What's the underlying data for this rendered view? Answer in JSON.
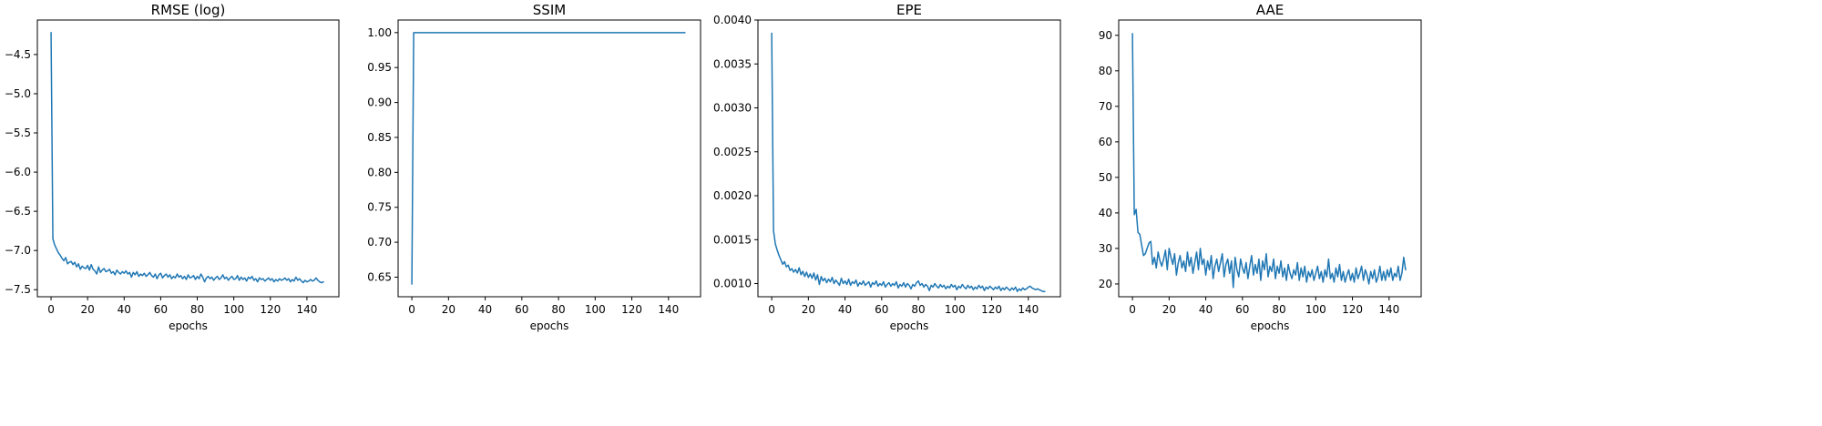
{
  "colors": {
    "series": "#1f77b4"
  },
  "chart_data": [
    {
      "type": "line",
      "title": "RMSE (log)",
      "xlabel": "epochs",
      "ylabel": "",
      "xlim": [
        -7.5,
        157.5
      ],
      "ylim": [
        -7.59,
        -4.06
      ],
      "xticks": [
        0,
        20,
        40,
        60,
        80,
        100,
        120,
        140
      ],
      "xtick_labels": [
        "0",
        "20",
        "40",
        "60",
        "80",
        "100",
        "120",
        "140"
      ],
      "yticks": [
        -7.5,
        -7.0,
        -6.5,
        -6.0,
        -5.5,
        -5.0,
        -4.5
      ],
      "ytick_labels": [
        "−7.5",
        "−7.0",
        "−6.5",
        "−6.0",
        "−5.5",
        "−5.0",
        "−4.5"
      ],
      "grid": false,
      "legend": null,
      "series": [
        {
          "x": [
            0,
            1,
            2,
            3,
            4,
            5,
            6,
            7,
            8,
            9,
            10,
            11,
            12,
            13,
            14,
            15,
            16,
            17,
            18,
            19,
            20,
            21,
            22,
            23,
            24,
            25,
            26,
            27,
            28,
            29,
            30,
            31,
            32,
            33,
            34,
            35,
            36,
            37,
            38,
            39,
            40,
            41,
            42,
            43,
            44,
            45,
            46,
            47,
            48,
            49,
            50,
            51,
            52,
            53,
            54,
            55,
            56,
            57,
            58,
            59,
            60,
            61,
            62,
            63,
            64,
            65,
            66,
            67,
            68,
            69,
            70,
            71,
            72,
            73,
            74,
            75,
            76,
            77,
            78,
            79,
            80,
            81,
            82,
            83,
            84,
            85,
            86,
            87,
            88,
            89,
            90,
            91,
            92,
            93,
            94,
            95,
            96,
            97,
            98,
            99,
            100,
            101,
            102,
            103,
            104,
            105,
            106,
            107,
            108,
            109,
            110,
            111,
            112,
            113,
            114,
            115,
            116,
            117,
            118,
            119,
            120,
            121,
            122,
            123,
            124,
            125,
            126,
            127,
            128,
            129,
            130,
            131,
            132,
            133,
            134,
            135,
            136,
            137,
            138,
            139,
            140,
            141,
            142,
            143,
            144,
            145,
            146,
            147,
            148,
            149
          ],
          "values": [
            -4.22,
            -6.85,
            -6.93,
            -6.98,
            -7.03,
            -7.06,
            -7.1,
            -7.13,
            -7.09,
            -7.17,
            -7.15,
            -7.14,
            -7.18,
            -7.15,
            -7.21,
            -7.17,
            -7.24,
            -7.2,
            -7.22,
            -7.23,
            -7.19,
            -7.25,
            -7.18,
            -7.24,
            -7.26,
            -7.3,
            -7.21,
            -7.28,
            -7.25,
            -7.23,
            -7.27,
            -7.26,
            -7.24,
            -7.29,
            -7.27,
            -7.31,
            -7.25,
            -7.28,
            -7.3,
            -7.27,
            -7.29,
            -7.26,
            -7.3,
            -7.28,
            -7.34,
            -7.28,
            -7.31,
            -7.27,
            -7.33,
            -7.3,
            -7.32,
            -7.29,
            -7.33,
            -7.31,
            -7.28,
            -7.32,
            -7.34,
            -7.3,
            -7.36,
            -7.31,
            -7.29,
            -7.35,
            -7.32,
            -7.3,
            -7.34,
            -7.31,
            -7.36,
            -7.33,
            -7.35,
            -7.3,
            -7.34,
            -7.32,
            -7.36,
            -7.33,
            -7.37,
            -7.31,
            -7.35,
            -7.34,
            -7.32,
            -7.37,
            -7.33,
            -7.36,
            -7.3,
            -7.34,
            -7.4,
            -7.35,
            -7.33,
            -7.36,
            -7.34,
            -7.38,
            -7.35,
            -7.33,
            -7.37,
            -7.35,
            -7.31,
            -7.36,
            -7.34,
            -7.38,
            -7.35,
            -7.33,
            -7.37,
            -7.36,
            -7.32,
            -7.38,
            -7.34,
            -7.37,
            -7.35,
            -7.39,
            -7.34,
            -7.36,
            -7.33,
            -7.38,
            -7.36,
            -7.4,
            -7.35,
            -7.37,
            -7.36,
            -7.39,
            -7.37,
            -7.35,
            -7.38,
            -7.36,
            -7.4,
            -7.37,
            -7.39,
            -7.36,
            -7.38,
            -7.37,
            -7.35,
            -7.38,
            -7.36,
            -7.4,
            -7.37,
            -7.39,
            -7.34,
            -7.38,
            -7.36,
            -7.39,
            -7.41,
            -7.38,
            -7.4,
            -7.39,
            -7.37,
            -7.39,
            -7.38,
            -7.35,
            -7.38,
            -7.4,
            -7.41,
            -7.4
          ]
        }
      ]
    },
    {
      "type": "line",
      "title": "SSIM",
      "xlabel": "epochs",
      "ylabel": "",
      "xlim": [
        -7.5,
        157.5
      ],
      "ylim": [
        0.622,
        1.018
      ],
      "xticks": [
        0,
        20,
        40,
        60,
        80,
        100,
        120,
        140
      ],
      "xtick_labels": [
        "0",
        "20",
        "40",
        "60",
        "80",
        "100",
        "120",
        "140"
      ],
      "yticks": [
        0.65,
        0.7,
        0.75,
        0.8,
        0.85,
        0.9,
        0.95,
        1.0
      ],
      "ytick_labels": [
        "0.65",
        "0.70",
        "0.75",
        "0.80",
        "0.85",
        "0.90",
        "0.95",
        "1.00"
      ],
      "grid": false,
      "legend": null,
      "series": [
        {
          "x": [
            0,
            1,
            149
          ],
          "values": [
            0.64,
            1.0,
            1.0
          ]
        }
      ]
    },
    {
      "type": "line",
      "title": "EPE",
      "xlabel": "epochs",
      "ylabel": "",
      "xlim": [
        -7.5,
        157.5
      ],
      "ylim": [
        0.00085,
        0.004
      ],
      "xticks": [
        0,
        20,
        40,
        60,
        80,
        100,
        120,
        140
      ],
      "xtick_labels": [
        "0",
        "20",
        "40",
        "60",
        "80",
        "100",
        "120",
        "140"
      ],
      "yticks": [
        0.001,
        0.0015,
        0.002,
        0.0025,
        0.003,
        0.0035,
        0.004
      ],
      "ytick_labels": [
        "0.0010",
        "0.0015",
        "0.0020",
        "0.0025",
        "0.0030",
        "0.0035",
        "0.0040"
      ],
      "grid": false,
      "legend": null,
      "series": [
        {
          "x": [
            0,
            1,
            2,
            3,
            4,
            5,
            6,
            7,
            8,
            9,
            10,
            11,
            12,
            13,
            14,
            15,
            16,
            17,
            18,
            19,
            20,
            21,
            22,
            23,
            24,
            25,
            26,
            27,
            28,
            29,
            30,
            31,
            32,
            33,
            34,
            35,
            36,
            37,
            38,
            39,
            40,
            41,
            42,
            43,
            44,
            45,
            46,
            47,
            48,
            49,
            50,
            51,
            52,
            53,
            54,
            55,
            56,
            57,
            58,
            59,
            60,
            61,
            62,
            63,
            64,
            65,
            66,
            67,
            68,
            69,
            70,
            71,
            72,
            73,
            74,
            75,
            76,
            77,
            78,
            79,
            80,
            81,
            82,
            83,
            84,
            85,
            86,
            87,
            88,
            89,
            90,
            91,
            92,
            93,
            94,
            95,
            96,
            97,
            98,
            99,
            100,
            101,
            102,
            103,
            104,
            105,
            106,
            107,
            108,
            109,
            110,
            111,
            112,
            113,
            114,
            115,
            116,
            117,
            118,
            119,
            120,
            121,
            122,
            123,
            124,
            125,
            126,
            127,
            128,
            129,
            130,
            131,
            132,
            133,
            134,
            135,
            136,
            137,
            138,
            139,
            140,
            141,
            142,
            143,
            144,
            145,
            146,
            147,
            148,
            149
          ],
          "values": [
            0.00385,
            0.0016,
            0.00145,
            0.00138,
            0.00132,
            0.00127,
            0.00122,
            0.00125,
            0.00119,
            0.00121,
            0.00115,
            0.00117,
            0.00113,
            0.00116,
            0.00112,
            0.00118,
            0.0011,
            0.00114,
            0.00108,
            0.00113,
            0.00107,
            0.00111,
            0.00106,
            0.00112,
            0.00104,
            0.0011,
            0.00099,
            0.00108,
            0.00103,
            0.00106,
            0.00101,
            0.00105,
            0.00102,
            0.00107,
            0.001,
            0.00104,
            0.00101,
            0.00098,
            0.00106,
            0.001,
            0.00103,
            0.00099,
            0.00105,
            0.00098,
            0.00102,
            0.001,
            0.00104,
            0.00097,
            0.00101,
            0.00099,
            0.00103,
            0.00098,
            0.001,
            0.00102,
            0.00096,
            0.00101,
            0.00099,
            0.00103,
            0.00097,
            0.001,
            0.00098,
            0.00102,
            0.00096,
            0.00099,
            0.00101,
            0.00097,
            0.001,
            0.00098,
            0.00102,
            0.00095,
            0.00099,
            0.00097,
            0.00101,
            0.00096,
            0.001,
            0.00098,
            0.00094,
            0.00099,
            0.00097,
            0.00101,
            0.00103,
            0.00098,
            0.001,
            0.00096,
            0.00099,
            0.00097,
            0.00092,
            0.00098,
            0.00096,
            0.001,
            0.00097,
            0.00095,
            0.00099,
            0.00096,
            0.00098,
            0.00094,
            0.00097,
            0.00095,
            0.00099,
            0.00096,
            0.00098,
            0.00093,
            0.00097,
            0.00095,
            0.00099,
            0.00096,
            0.00094,
            0.00098,
            0.00095,
            0.00097,
            0.00093,
            0.00096,
            0.00094,
            0.00098,
            0.00095,
            0.00097,
            0.00092,
            0.00096,
            0.00094,
            0.00097,
            0.00095,
            0.00093,
            0.00096,
            0.00094,
            0.00097,
            0.00092,
            0.00095,
            0.00093,
            0.00096,
            0.00094,
            0.00092,
            0.00095,
            0.00093,
            0.00096,
            0.00091,
            0.00094,
            0.00092,
            0.00095,
            0.00093,
            0.00094,
            0.00096,
            0.00097,
            0.00095,
            0.00094,
            0.00093,
            0.00094,
            0.00093,
            0.00092,
            0.00091,
            0.00091
          ]
        }
      ]
    },
    {
      "type": "line",
      "title": "AAE",
      "xlabel": "epochs",
      "ylabel": "",
      "xlim": [
        -7.5,
        157.5
      ],
      "ylim": [
        16.4,
        94.3
      ],
      "xticks": [
        0,
        20,
        40,
        60,
        80,
        100,
        120,
        140
      ],
      "xtick_labels": [
        "0",
        "20",
        "40",
        "60",
        "80",
        "100",
        "120",
        "140"
      ],
      "yticks": [
        20,
        30,
        40,
        50,
        60,
        70,
        80,
        90
      ],
      "ytick_labels": [
        "20",
        "30",
        "40",
        "50",
        "60",
        "70",
        "80",
        "90"
      ],
      "grid": false,
      "legend": null,
      "series": [
        {
          "x": [
            0,
            1,
            2,
            3,
            4,
            5,
            6,
            7,
            8,
            9,
            10,
            11,
            12,
            13,
            14,
            15,
            16,
            17,
            18,
            19,
            20,
            21,
            22,
            23,
            24,
            25,
            26,
            27,
            28,
            29,
            30,
            31,
            32,
            33,
            34,
            35,
            36,
            37,
            38,
            39,
            40,
            41,
            42,
            43,
            44,
            45,
            46,
            47,
            48,
            49,
            50,
            51,
            52,
            53,
            54,
            55,
            56,
            57,
            58,
            59,
            60,
            61,
            62,
            63,
            64,
            65,
            66,
            67,
            68,
            69,
            70,
            71,
            72,
            73,
            74,
            75,
            76,
            77,
            78,
            79,
            80,
            81,
            82,
            83,
            84,
            85,
            86,
            87,
            88,
            89,
            90,
            91,
            92,
            93,
            94,
            95,
            96,
            97,
            98,
            99,
            100,
            101,
            102,
            103,
            104,
            105,
            106,
            107,
            108,
            109,
            110,
            111,
            112,
            113,
            114,
            115,
            116,
            117,
            118,
            119,
            120,
            121,
            122,
            123,
            124,
            125,
            126,
            127,
            128,
            129,
            130,
            131,
            132,
            133,
            134,
            135,
            136,
            137,
            138,
            139,
            140,
            141,
            142,
            143,
            144,
            145,
            146,
            147,
            148,
            149
          ],
          "values": [
            90.5,
            39.5,
            41.0,
            34.5,
            34.0,
            31.0,
            28.0,
            28.5,
            30.0,
            31.5,
            32.0,
            25.5,
            27.5,
            24.5,
            29.0,
            26.5,
            25.0,
            27.0,
            29.5,
            24.0,
            30.0,
            27.5,
            25.5,
            28.5,
            22.5,
            26.0,
            28.0,
            24.5,
            26.5,
            23.5,
            29.0,
            25.0,
            27.5,
            23.0,
            26.0,
            29.0,
            24.0,
            30.0,
            25.5,
            27.0,
            22.5,
            26.5,
            24.0,
            28.0,
            21.5,
            25.0,
            27.0,
            23.5,
            26.0,
            28.5,
            22.0,
            25.5,
            27.0,
            23.0,
            26.5,
            19.0,
            27.5,
            24.0,
            22.0,
            27.0,
            24.5,
            23.0,
            26.0,
            21.5,
            25.0,
            28.0,
            22.5,
            25.5,
            23.0,
            27.0,
            21.0,
            26.5,
            24.0,
            28.5,
            22.0,
            25.0,
            23.5,
            27.0,
            21.5,
            25.0,
            23.0,
            26.5,
            22.0,
            24.5,
            21.0,
            25.5,
            23.0,
            21.5,
            24.0,
            22.5,
            26.0,
            21.0,
            24.5,
            22.0,
            25.0,
            20.5,
            23.5,
            22.0,
            24.0,
            21.0,
            23.0,
            25.0,
            21.5,
            23.5,
            20.5,
            24.0,
            22.0,
            27.0,
            21.5,
            23.0,
            20.5,
            24.5,
            22.0,
            25.5,
            21.0,
            23.5,
            20.5,
            22.5,
            24.0,
            21.0,
            23.0,
            20.5,
            24.5,
            21.5,
            23.0,
            25.0,
            21.0,
            24.0,
            22.5,
            20.0,
            23.5,
            21.5,
            24.0,
            20.5,
            22.0,
            25.0,
            21.0,
            23.5,
            21.0,
            24.0,
            22.0,
            24.5,
            21.0,
            23.0,
            22.0,
            25.0,
            21.0,
            23.0,
            27.5,
            24.0
          ]
        }
      ]
    }
  ]
}
